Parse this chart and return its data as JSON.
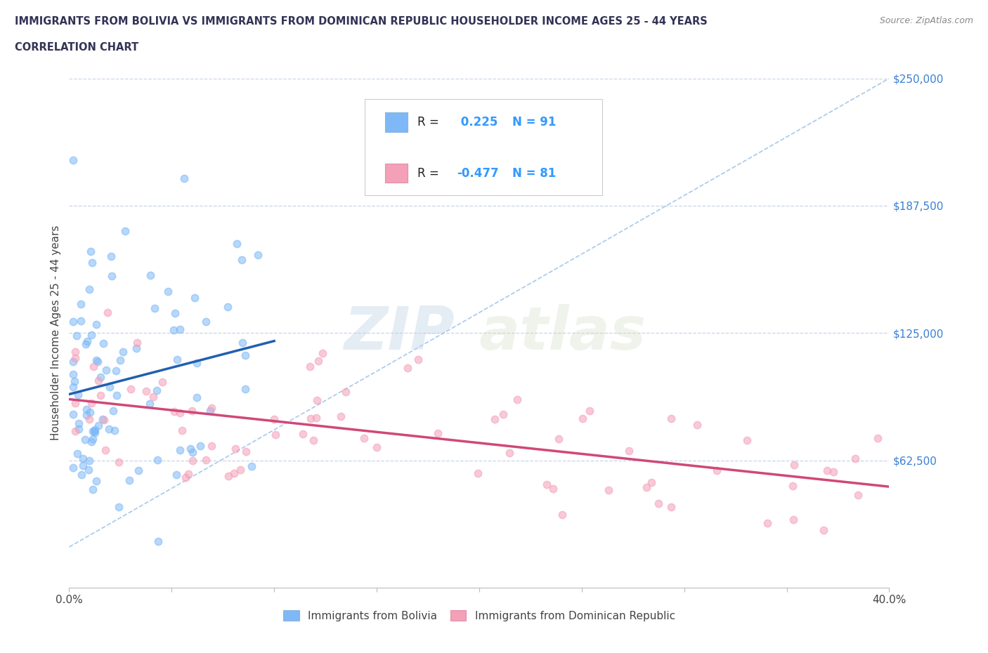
{
  "title_line1": "IMMIGRANTS FROM BOLIVIA VS IMMIGRANTS FROM DOMINICAN REPUBLIC HOUSEHOLDER INCOME AGES 25 - 44 YEARS",
  "title_line2": "CORRELATION CHART",
  "source": "Source: ZipAtlas.com",
  "ylabel": "Householder Income Ages 25 - 44 years",
  "xlim": [
    0,
    0.4
  ],
  "ylim": [
    0,
    250000
  ],
  "xticks": [
    0.0,
    0.05,
    0.1,
    0.15,
    0.2,
    0.25,
    0.3,
    0.35,
    0.4
  ],
  "ytick_positions": [
    0,
    62500,
    125000,
    187500,
    250000
  ],
  "ytick_labels": [
    "",
    "$62,500",
    "$125,000",
    "$187,500",
    "$250,000"
  ],
  "bolivia_color": "#7eb8f7",
  "dominican_color": "#f4a0b8",
  "bolivia_line_color": "#2060b0",
  "dominican_line_color": "#d04878",
  "dash_line_color": "#90bce8",
  "grid_color": "#c8d4e8",
  "background_color": "#ffffff",
  "bolivia_R": 0.225,
  "bolivia_N": 91,
  "dominican_R": -0.477,
  "dominican_N": 81,
  "watermark_zip": "ZIP",
  "watermark_atlas": "atlas",
  "bolivia_label": "Immigrants from Bolivia",
  "dominican_label": "Immigrants from Dominican Republic"
}
